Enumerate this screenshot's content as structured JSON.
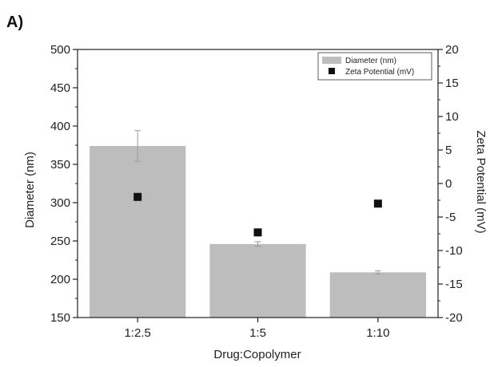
{
  "panel_label": "A)",
  "chart_data": {
    "type": "bar",
    "categories": [
      "1:2.5",
      "1:5",
      "1:10"
    ],
    "xlabel": "Drug:Copolymer",
    "series": [
      {
        "name": "Diameter (nm)",
        "kind": "bar",
        "axis": "left",
        "values": [
          374,
          246,
          209
        ],
        "error": [
          20,
          3,
          2
        ],
        "color": "#bdbdbd"
      },
      {
        "name": "Zeta Potential (mV)",
        "kind": "scatter",
        "axis": "right",
        "values": [
          -2,
          -7.3,
          -3
        ],
        "error": [
          0.3,
          0.6,
          0.2
        ],
        "color": "#111111",
        "marker": "square"
      }
    ],
    "y_left": {
      "label": "Diameter (nm)",
      "ylim": [
        150,
        500
      ],
      "ticks": [
        "150",
        "200",
        "250",
        "300",
        "350",
        "400",
        "450",
        "500"
      ]
    },
    "y_right": {
      "label": "Zeta Potential (mV)",
      "ylim": [
        -20,
        20
      ],
      "ticks": [
        "-20",
        "-15",
        "-10",
        "-5",
        "0",
        "5",
        "10",
        "15",
        "20"
      ]
    },
    "grid": false,
    "legend_position": "top-right"
  }
}
